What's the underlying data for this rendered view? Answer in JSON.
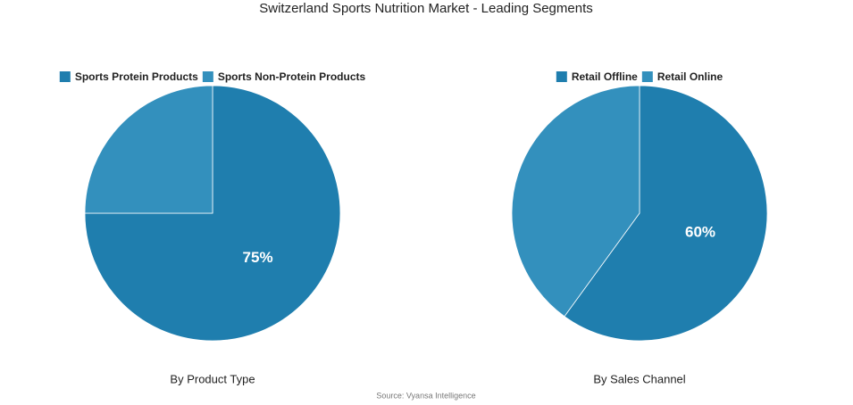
{
  "title": "Switzerland Sports Nutrition Market - Leading Segments",
  "source": "Source: Vyansa Intelligence",
  "chart_data": [
    {
      "type": "pie",
      "subtitle": "By Product Type",
      "categories": [
        "Sports Protein Products",
        "Sports Non-Protein Products"
      ],
      "values": [
        75,
        25
      ],
      "value_labels": [
        "75%",
        null
      ],
      "colors": [
        "#1f7eae",
        "#3390bd"
      ]
    },
    {
      "type": "pie",
      "subtitle": "By Sales Channel",
      "categories": [
        "Retail Offline",
        "Retail Online"
      ],
      "values": [
        60,
        40
      ],
      "value_labels": [
        "60%",
        null
      ],
      "colors": [
        "#1f7eae",
        "#3390bd"
      ]
    }
  ]
}
